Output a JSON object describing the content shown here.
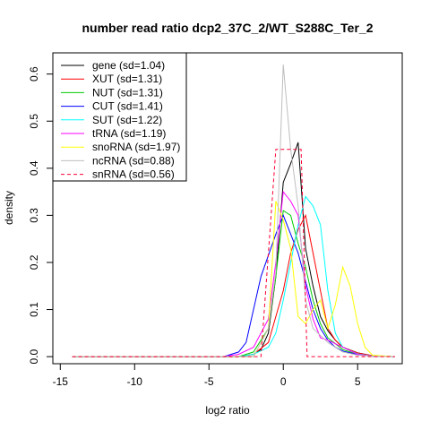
{
  "chart_data": {
    "type": "line",
    "title": "number read ratio dcp2_37C_2/WT_S288C_Ter_2",
    "xlabel": "log2 ratio",
    "ylabel": "density",
    "xlim": [
      -15.5,
      8.0
    ],
    "ylim": [
      -0.015,
      0.645
    ],
    "xticks": [
      -15,
      -10,
      -5,
      0,
      5
    ],
    "yticks": [
      0.0,
      0.1,
      0.2,
      0.3,
      0.4,
      0.5,
      0.6
    ],
    "legend_position": "top-left",
    "series": [
      {
        "name": "gene (sd=1.04)",
        "color": "#000000",
        "dash": "solid",
        "x": [
          -14.2,
          -4,
          -3,
          -2,
          -1.5,
          -1,
          -0.5,
          0,
          0.5,
          1,
          1.5,
          2,
          2.5,
          3,
          3.5,
          4,
          5,
          6,
          7.5
        ],
        "y": [
          0,
          0,
          0,
          0.005,
          0.015,
          0.05,
          0.17,
          0.37,
          0.41,
          0.455,
          0.23,
          0.15,
          0.085,
          0.055,
          0.035,
          0.02,
          0.008,
          0.002,
          0
        ]
      },
      {
        "name": "XUT (sd=1.31)",
        "color": "#ff0000",
        "dash": "solid",
        "x": [
          -14.2,
          -4,
          -3,
          -2,
          -1,
          0,
          0.5,
          1,
          1.5,
          2,
          2.5,
          3,
          3.5,
          4,
          5,
          6,
          7.5
        ],
        "y": [
          0,
          0,
          0,
          0.005,
          0.03,
          0.14,
          0.22,
          0.27,
          0.3,
          0.22,
          0.14,
          0.06,
          0.035,
          0.02,
          0.008,
          0.002,
          0
        ]
      },
      {
        "name": "NUT (sd=1.31)",
        "color": "#00cc00",
        "dash": "solid",
        "x": [
          -14.2,
          -4,
          -3,
          -2,
          -1,
          -0.5,
          0,
          0.5,
          1,
          1.5,
          2,
          2.5,
          3,
          4,
          5,
          6,
          7.5
        ],
        "y": [
          0,
          0,
          0,
          0.01,
          0.06,
          0.17,
          0.31,
          0.3,
          0.24,
          0.19,
          0.12,
          0.07,
          0.04,
          0.015,
          0.005,
          0.001,
          0
        ]
      },
      {
        "name": "CUT (sd=1.41)",
        "color": "#0000ff",
        "dash": "solid",
        "x": [
          -14.2,
          -4,
          -3,
          -2.5,
          -1.5,
          -0.5,
          0,
          0.5,
          1,
          1.5,
          2,
          2.5,
          3,
          3.5,
          4,
          5,
          6,
          7.5
        ],
        "y": [
          0,
          0,
          0.01,
          0.03,
          0.17,
          0.26,
          0.3,
          0.26,
          0.22,
          0.16,
          0.1,
          0.06,
          0.035,
          0.02,
          0.012,
          0.004,
          0.001,
          0
        ]
      },
      {
        "name": "SUT (sd=1.22)",
        "color": "#00ffff",
        "dash": "solid",
        "x": [
          -14.2,
          -3,
          -2,
          -1,
          -0.5,
          0,
          0.5,
          1,
          1.5,
          2,
          2.5,
          3,
          3.5,
          4,
          5,
          6,
          7.5
        ],
        "y": [
          0,
          0,
          0.005,
          0.02,
          0.05,
          0.12,
          0.2,
          0.28,
          0.34,
          0.32,
          0.28,
          0.14,
          0.05,
          0.02,
          0.006,
          0.001,
          0
        ]
      },
      {
        "name": "tRNA (sd=1.19)",
        "color": "#ff00ff",
        "dash": "solid",
        "x": [
          -14.2,
          -4,
          -3,
          -2,
          -1,
          -0.5,
          0,
          0.5,
          1,
          1.5,
          2,
          2.5,
          3,
          4,
          5,
          6,
          7.5
        ],
        "y": [
          0,
          0,
          0.005,
          0.02,
          0.08,
          0.2,
          0.35,
          0.33,
          0.3,
          0.15,
          0.08,
          0.04,
          0.035,
          0.02,
          0.005,
          0.001,
          0
        ]
      },
      {
        "name": "snoRNA (sd=1.97)",
        "color": "#ffff00",
        "dash": "solid",
        "x": [
          -14.2,
          -2,
          -1,
          -0.5,
          0,
          0.5,
          1,
          1.5,
          2,
          2.5,
          3,
          3.5,
          4,
          4.5,
          5,
          5.5,
          6,
          7.5
        ],
        "y": [
          0,
          0,
          0.06,
          0.33,
          0.29,
          0.23,
          0.085,
          0.07,
          0.1,
          0.12,
          0.06,
          0.11,
          0.19,
          0.15,
          0.07,
          0.02,
          0.003,
          0
        ]
      },
      {
        "name": "ncRNA (sd=0.88)",
        "color": "#bebebe",
        "dash": "solid",
        "x": [
          -14.2,
          -2,
          -1,
          -0.5,
          0,
          0.5,
          1,
          1.5,
          2,
          3,
          4,
          5,
          6,
          7.5
        ],
        "y": [
          0,
          0,
          0.06,
          0.18,
          0.62,
          0.44,
          0.32,
          0.12,
          0.06,
          0.03,
          0.01,
          0.003,
          0.001,
          0
        ]
      },
      {
        "name": "snRNA (sd=0.56)",
        "color": "#ff0033",
        "dash": "dashed",
        "x": [
          -14.2,
          -1.5,
          -0.5,
          0.5,
          1.2,
          1.6,
          7.5
        ],
        "y": [
          0,
          0,
          0.44,
          0.44,
          0.44,
          0,
          0
        ]
      }
    ]
  }
}
